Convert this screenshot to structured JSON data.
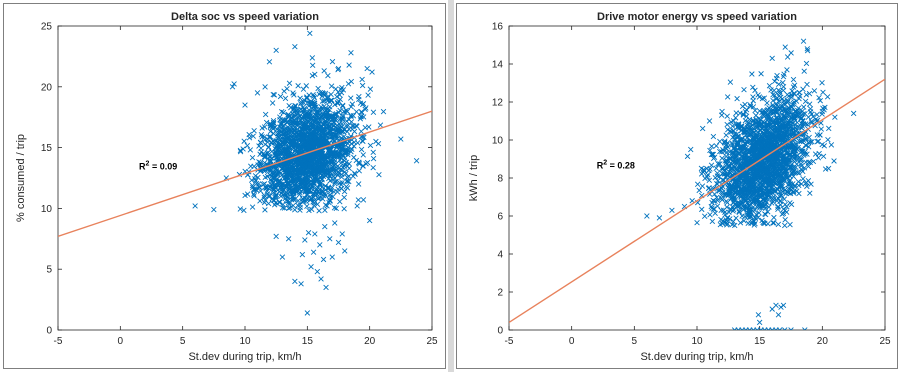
{
  "chart_data": [
    {
      "type": "scatter",
      "title": "Delta soc vs speed variation",
      "xlabel": "St.dev during trip, km/h",
      "ylabel": "% consumed / trip",
      "xlim": [
        -5,
        25
      ],
      "ylim": [
        0,
        25
      ],
      "xticks": [
        "-5",
        "0",
        "5",
        "10",
        "15",
        "20",
        "25"
      ],
      "yticks": [
        "0",
        "5",
        "10",
        "15",
        "20",
        "25"
      ],
      "grid": false,
      "marker": "x",
      "colors": {
        "points": "#0072bd",
        "fit": "#e8825c"
      },
      "r2_base": "R",
      "r2_sup": "2",
      "r2_value": " = 0.09",
      "r2_at": [
        1.5,
        13.2
      ],
      "fit_line": {
        "x": [
          -5,
          25
        ],
        "y": [
          7.7,
          18.0
        ]
      },
      "cluster": {
        "n": 2000,
        "xmean": 15.0,
        "xsd": 1.9,
        "ymean": 14.5,
        "ysd": 2.3,
        "ymin": 9.8,
        "ymax": 23.5,
        "seed": 11
      },
      "points": [
        [
          6.0,
          10.2
        ],
        [
          7.5,
          9.9
        ],
        [
          8.5,
          12.5
        ],
        [
          9.0,
          20.0
        ],
        [
          10.0,
          18.5
        ],
        [
          11.0,
          19.5
        ],
        [
          12.5,
          23.0
        ],
        [
          14.0,
          23.3
        ],
        [
          15.2,
          24.4
        ],
        [
          17.5,
          21.5
        ],
        [
          18.5,
          22.8
        ],
        [
          19.8,
          21.5
        ],
        [
          20.0,
          9.0
        ],
        [
          20.5,
          15.5
        ],
        [
          22.5,
          15.7
        ],
        [
          19.5,
          10.7
        ],
        [
          19.0,
          10.2
        ],
        [
          12.5,
          7.7
        ],
        [
          13.0,
          6.0
        ],
        [
          13.5,
          7.5
        ],
        [
          14.0,
          4.0
        ],
        [
          14.5,
          3.8
        ],
        [
          14.8,
          7.4
        ],
        [
          15.0,
          1.4
        ],
        [
          15.3,
          5.2
        ],
        [
          15.5,
          6.4
        ],
        [
          15.8,
          4.8
        ],
        [
          16.0,
          7.0
        ],
        [
          16.3,
          5.8
        ],
        [
          16.5,
          3.5
        ],
        [
          16.8,
          7.5
        ],
        [
          17.0,
          6.0
        ],
        [
          17.2,
          8.8
        ],
        [
          17.5,
          7.2
        ],
        [
          16.1,
          4.2
        ],
        [
          15.6,
          7.9
        ],
        [
          18.0,
          6.5
        ],
        [
          16.4,
          8.5
        ],
        [
          14.6,
          6.2
        ],
        [
          15.1,
          8.0
        ],
        [
          17.8,
          7.9
        ]
      ]
    },
    {
      "type": "scatter",
      "title": "Drive motor energy vs speed variation",
      "xlabel": "St.dev during trip, km/h",
      "ylabel": "kWh / trip",
      "xlim": [
        -5,
        25
      ],
      "ylim": [
        0,
        16
      ],
      "xticks": [
        "-5",
        "0",
        "5",
        "10",
        "15",
        "20",
        "25"
      ],
      "yticks": [
        "0",
        "2",
        "4",
        "6",
        "8",
        "10",
        "12",
        "14",
        "16"
      ],
      "grid": false,
      "marker": "x",
      "colors": {
        "points": "#0072bd",
        "fit": "#e8825c"
      },
      "r2_base": "R",
      "r2_sup": "2",
      "r2_value": " = 0.28",
      "r2_at": [
        2.0,
        8.5
      ],
      "fit_line": {
        "x": [
          -5,
          25
        ],
        "y": [
          0.4,
          13.2
        ]
      },
      "cluster": {
        "n": 2000,
        "xmean": 15.2,
        "xsd": 1.9,
        "ymean": 8.9,
        "ysd": 1.5,
        "ymin": 5.5,
        "ymax": 15.0,
        "seed": 23
      },
      "points": [
        [
          6.0,
          6.0
        ],
        [
          7.0,
          5.9
        ],
        [
          8.0,
          6.3
        ],
        [
          9.0,
          6.5
        ],
        [
          9.5,
          9.5
        ],
        [
          11.0,
          11.0
        ],
        [
          12.0,
          11.5
        ],
        [
          16.0,
          14.3
        ],
        [
          18.5,
          15.2
        ],
        [
          18.8,
          14.8
        ],
        [
          20.0,
          11.5
        ],
        [
          21.0,
          11.2
        ],
        [
          22.5,
          11.4
        ],
        [
          17.0,
          5.5
        ],
        [
          19.0,
          7.2
        ],
        [
          20.5,
          8.5
        ],
        [
          10.5,
          8.3
        ],
        [
          13.0,
          0.0
        ],
        [
          13.3,
          0.0
        ],
        [
          13.6,
          0.0
        ],
        [
          13.9,
          0.0
        ],
        [
          14.2,
          0.0
        ],
        [
          14.5,
          0.0
        ],
        [
          14.8,
          0.0
        ],
        [
          15.1,
          0.0
        ],
        [
          15.4,
          0.0
        ],
        [
          15.7,
          0.0
        ],
        [
          16.0,
          0.0
        ],
        [
          16.3,
          0.0
        ],
        [
          16.6,
          0.0
        ],
        [
          17.0,
          0.0
        ],
        [
          17.5,
          0.0
        ],
        [
          18.6,
          0.0
        ],
        [
          15.0,
          0.4
        ],
        [
          14.9,
          0.8
        ],
        [
          16.0,
          1.1
        ],
        [
          16.3,
          1.3
        ],
        [
          16.7,
          1.2
        ],
        [
          16.9,
          1.3
        ],
        [
          16.5,
          0.8
        ]
      ]
    }
  ]
}
